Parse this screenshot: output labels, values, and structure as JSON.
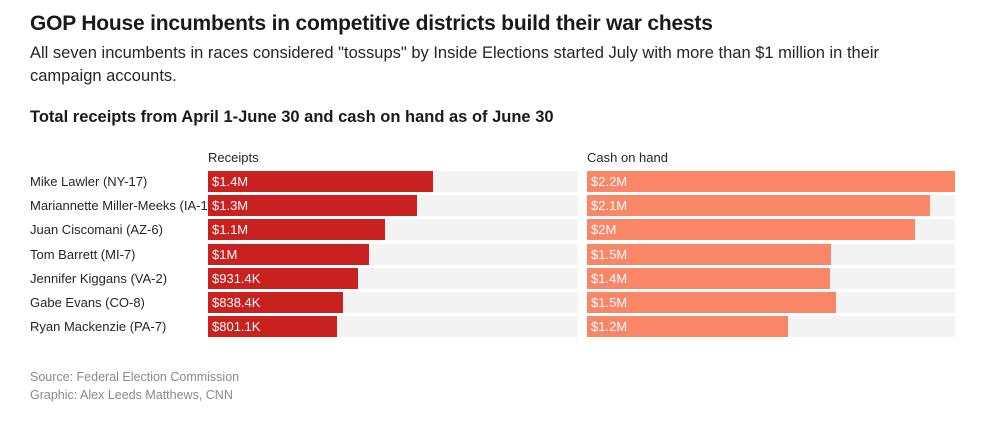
{
  "header": {
    "title": "GOP House incumbents in competitive districts build their war chests",
    "subtitle": "All seven incumbents in races considered \"tossups\" by Inside Elections started July with more than $1 million in their campaign accounts."
  },
  "chart_data": {
    "type": "bar",
    "orientation": "horizontal",
    "title": "Total receipts from April 1-June 30 and cash on hand as of June 30",
    "categories": [
      "Mike Lawler (NY-17)",
      "Mariannette Miller-Meeks (IA-1)",
      "Juan Ciscomani (AZ-6)",
      "Tom Barrett (MI-7)",
      "Jennifer Kiggans (VA-2)",
      "Gabe Evans (CO-8)",
      "Ryan Mackenzie (PA-7)"
    ],
    "series": [
      {
        "name": "Receipts",
        "color": "#c8211f",
        "values": [
          1400000,
          1300000,
          1100000,
          1000000,
          931400,
          838400,
          801100
        ],
        "labels": [
          "$1.4M",
          "$1.3M",
          "$1.1M",
          "$1M",
          "$931.4K",
          "$838.4K",
          "$801.1K"
        ],
        "xlim": [
          0,
          2300000
        ]
      },
      {
        "name": "Cash on hand",
        "color": "#f98667",
        "values": [
          2200000,
          2050000,
          1960000,
          1460000,
          1450000,
          1490000,
          1200000
        ],
        "labels": [
          "$2.2M",
          "$2.1M",
          "$2M",
          "$1.5M",
          "$1.4M",
          "$1.5M",
          "$1.2M"
        ],
        "xlim": [
          0,
          2200000
        ]
      }
    ]
  },
  "footer": {
    "source": "Source: Federal Election Commission",
    "credit": "Graphic: Alex Leeds Matthews, CNN"
  }
}
